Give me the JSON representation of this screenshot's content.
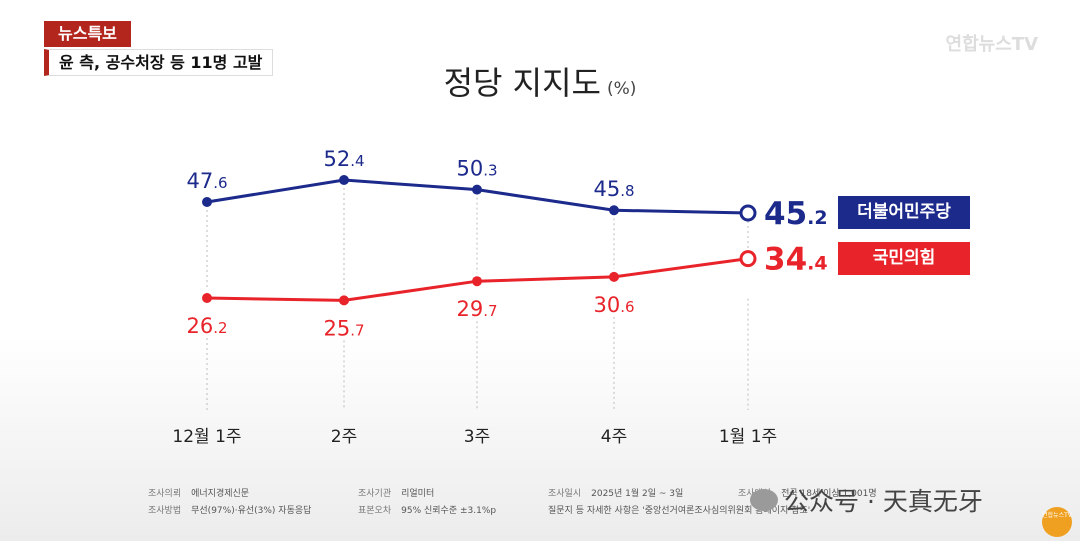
{
  "news_badge": "뉴스특보",
  "headline": "윤 측, 공수처장 등 11명 고발",
  "broadcaster_watermark": "연합뉴스TV",
  "chart_data": {
    "type": "line",
    "title": "정당 지지도",
    "unit": "(%)",
    "categories": [
      "12월 1주",
      "2주",
      "3주",
      "4주",
      "1월 1주"
    ],
    "series": [
      {
        "name": "더불어민주당",
        "color": "#1c2a8c",
        "values": [
          47.6,
          52.4,
          50.3,
          45.8,
          45.2
        ],
        "labels": [
          {
            "int": "47",
            "dec": ".6"
          },
          {
            "int": "52",
            "dec": ".4"
          },
          {
            "int": "50",
            "dec": ".3"
          },
          {
            "int": "45",
            "dec": ".8"
          },
          {
            "int": "45",
            "dec": ".2"
          }
        ]
      },
      {
        "name": "국민의힘",
        "color": "#e8232a",
        "values": [
          26.2,
          25.7,
          29.7,
          30.6,
          34.4
        ],
        "labels": [
          {
            "int": "26",
            "dec": ".2"
          },
          {
            "int": "25",
            "dec": ".7"
          },
          {
            "int": "29",
            "dec": ".7"
          },
          {
            "int": "30",
            "dec": ".6"
          },
          {
            "int": "34",
            "dec": ".4"
          }
        ]
      }
    ]
  },
  "footer": {
    "client_label": "조사의뢰",
    "client_value": "에너지경제신문",
    "agency_label": "조사기관",
    "agency_value": "리얼미터",
    "date_label": "조사일시",
    "date_value": "2025년 1월 2일 ~ 3일",
    "target_label": "조사대상",
    "target_value": "전국 18세 이상 1,001명",
    "method_label": "조사방법",
    "method_value": "무선(97%)·유선(3%) 자동응답",
    "error_label": "표본오차",
    "error_value": "95% 신뢰수준 ±3.1%p",
    "note": "질문지 등 자세한 사항은 '중앙선거여론조사심의위원회 홈페이지 참조'"
  },
  "wechat_watermark": "公众号 · 天真无牙",
  "corner_logo": "연합뉴스TV"
}
